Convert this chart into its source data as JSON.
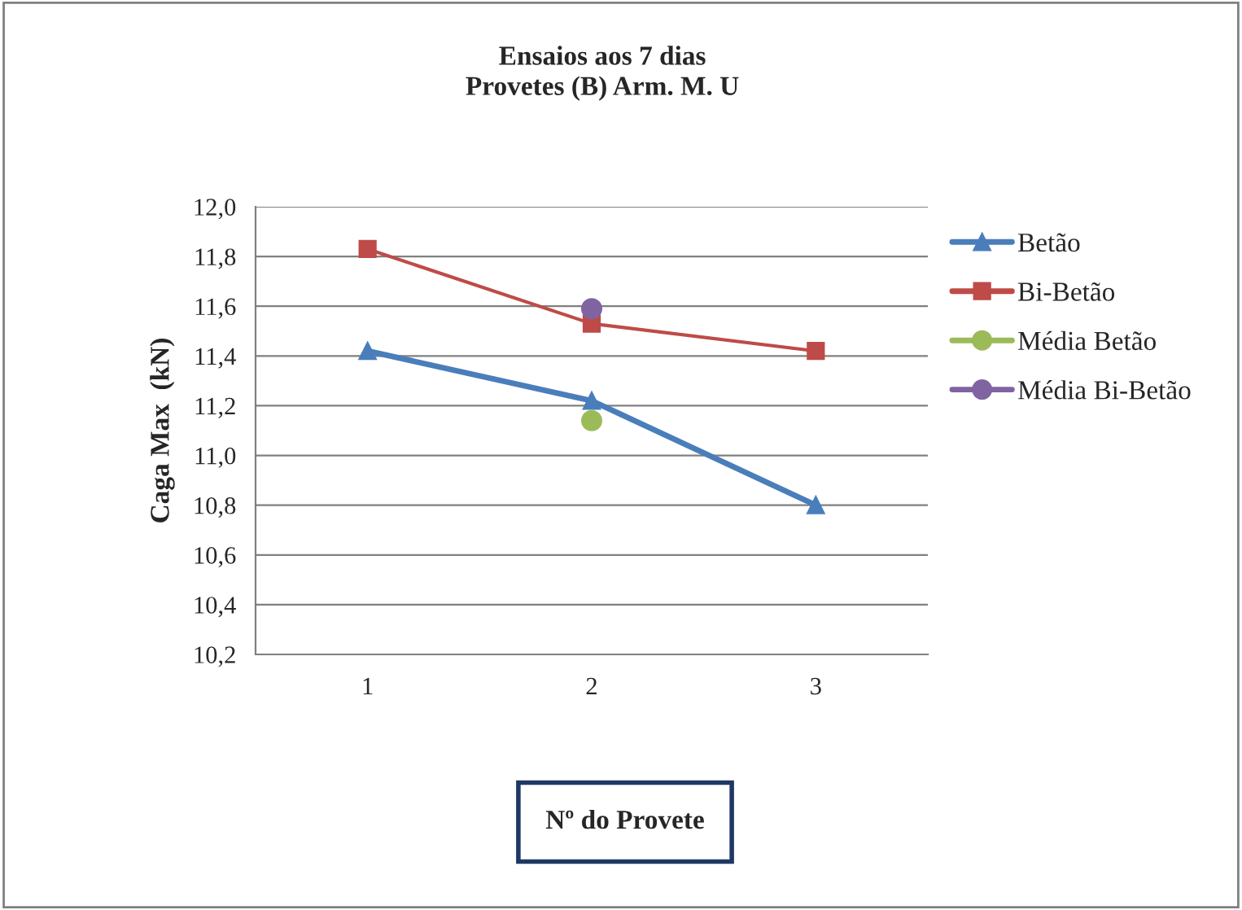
{
  "chart_data": {
    "type": "line",
    "title": "Ensaios aos 7 dias\nProvetes (B) Arm. M. U",
    "xlabel": "Nº do Provete",
    "ylabel": "Caga Max  (kN)",
    "categories": [
      "1",
      "2",
      "3"
    ],
    "series": [
      {
        "name": "Betão",
        "color": "#4a7ebb",
        "marker": "triangle",
        "values": [
          11.42,
          11.22,
          10.8
        ]
      },
      {
        "name": "Bi-Betão",
        "color": "#be4b48",
        "marker": "square",
        "values": [
          11.83,
          11.53,
          11.42
        ]
      },
      {
        "name": "Média Betão",
        "type": "scatter",
        "color": "#9bbb59",
        "marker": "circle",
        "values": [
          null,
          11.14,
          null
        ]
      },
      {
        "name": "Média Bi-Betão",
        "type": "scatter",
        "color": "#8064a2",
        "marker": "circle",
        "values": [
          null,
          11.59,
          null
        ]
      }
    ],
    "ylim": [
      10.2,
      12.0
    ],
    "yticks": [
      {
        "value": 10.2,
        "label": "10,2"
      },
      {
        "value": 10.4,
        "label": "10,4"
      },
      {
        "value": 10.6,
        "label": "10,6"
      },
      {
        "value": 10.8,
        "label": "10,8"
      },
      {
        "value": 11.0,
        "label": "11,0"
      },
      {
        "value": 11.2,
        "label": "11,2"
      },
      {
        "value": 11.4,
        "label": "11,4"
      },
      {
        "value": 11.6,
        "label": "11,6"
      },
      {
        "value": 11.8,
        "label": "11,8"
      },
      {
        "value": 12.0,
        "label": "12,0"
      }
    ],
    "grid": "y",
    "legend": "right"
  }
}
